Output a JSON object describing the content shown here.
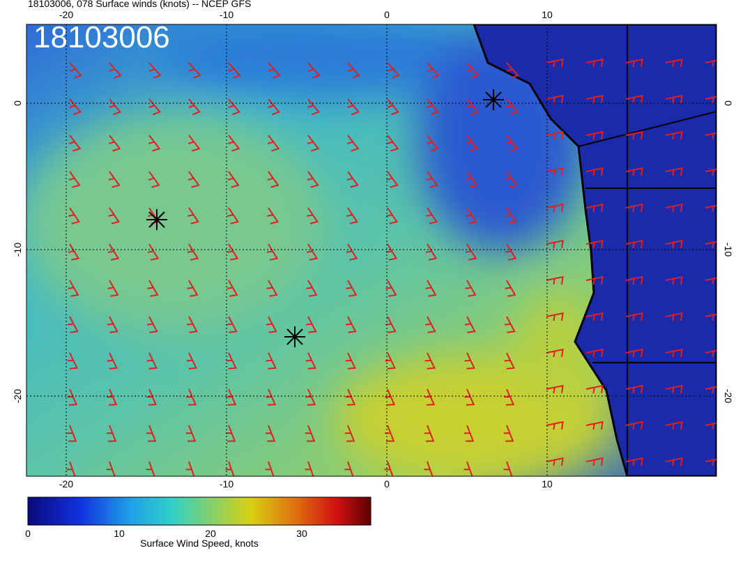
{
  "header": {
    "title": "18103006, 078 Surface winds (knots) -- NCEP GFS"
  },
  "map": {
    "label": "18103006",
    "xticks": [
      -20,
      -10,
      0,
      10
    ],
    "yticks": [
      0,
      -10,
      -20
    ]
  },
  "colorbar": {
    "ticks": [
      0,
      10,
      20,
      30
    ],
    "label": "Surface Wind Speed, knots"
  }
}
